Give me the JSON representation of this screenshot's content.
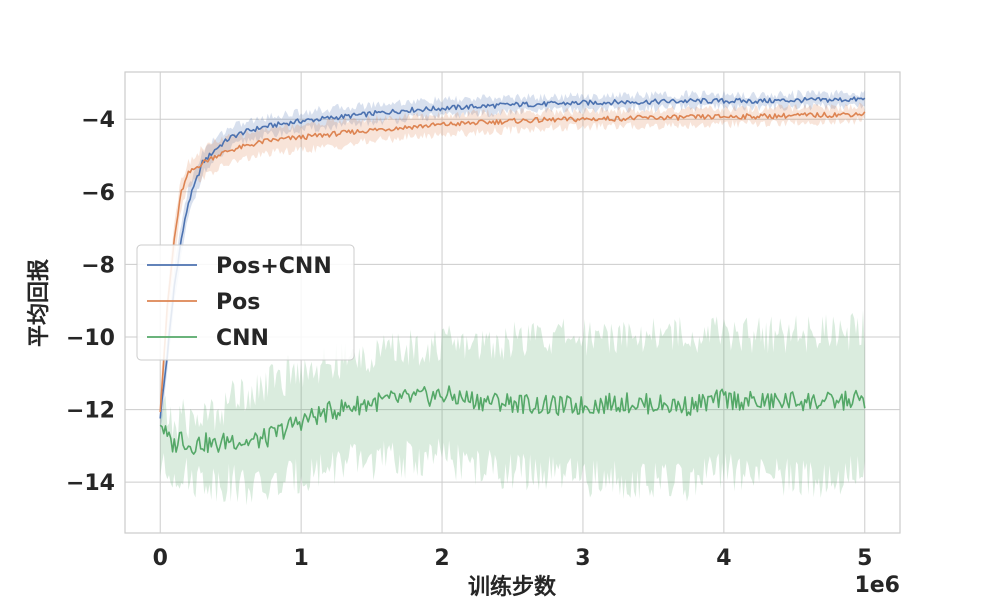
{
  "chart_data": {
    "type": "line",
    "xlabel": "训练步数",
    "ylabel": "平均回报",
    "x_offset_label": "1e6",
    "xlim": [
      -0.25,
      5.25
    ],
    "ylim": [
      -15.4,
      -2.7
    ],
    "xticks": [
      0,
      1,
      2,
      3,
      4,
      5
    ],
    "xtick_labels": [
      "0",
      "1",
      "2",
      "3",
      "4",
      "5"
    ],
    "yticks": [
      -4,
      -6,
      -8,
      -10,
      -12,
      -14
    ],
    "ytick_labels": [
      "−4",
      "−6",
      "−8",
      "−10",
      "−12",
      "−14"
    ],
    "grid": true,
    "legend_position": "center-left",
    "x": [
      0,
      0.05,
      0.1,
      0.15,
      0.2,
      0.3,
      0.4,
      0.5,
      0.6,
      0.75,
      1.0,
      1.25,
      1.5,
      1.75,
      2.0,
      2.25,
      2.5,
      2.75,
      3.0,
      3.25,
      3.5,
      3.75,
      4.0,
      4.25,
      4.5,
      4.75,
      5.0
    ],
    "series": [
      {
        "name": "Pos+CNN",
        "color": "#4c72b0",
        "values": [
          -12.2,
          -10.5,
          -8.6,
          -7.3,
          -6.3,
          -5.2,
          -4.8,
          -4.5,
          -4.35,
          -4.2,
          -4.05,
          -3.95,
          -3.85,
          -3.75,
          -3.7,
          -3.65,
          -3.6,
          -3.58,
          -3.55,
          -3.53,
          -3.52,
          -3.5,
          -3.5,
          -3.5,
          -3.48,
          -3.47,
          -3.45
        ],
        "lower": [
          -12.6,
          -11.0,
          -9.1,
          -7.8,
          -6.7,
          -5.5,
          -5.1,
          -4.8,
          -4.6,
          -4.45,
          -4.3,
          -4.2,
          -4.1,
          -3.98,
          -3.92,
          -3.86,
          -3.8,
          -3.77,
          -3.74,
          -3.71,
          -3.7,
          -3.68,
          -3.68,
          -3.67,
          -3.65,
          -3.64,
          -3.62
        ],
        "upper": [
          -11.8,
          -10.0,
          -8.1,
          -6.8,
          -5.9,
          -4.9,
          -4.5,
          -4.2,
          -4.1,
          -3.95,
          -3.8,
          -3.7,
          -3.6,
          -3.52,
          -3.48,
          -3.44,
          -3.4,
          -3.39,
          -3.36,
          -3.35,
          -3.34,
          -3.32,
          -3.32,
          -3.33,
          -3.31,
          -3.3,
          -3.28
        ]
      },
      {
        "name": "Pos",
        "color": "#dd8452",
        "values": [
          -12.0,
          -9.2,
          -7.3,
          -6.0,
          -5.5,
          -5.2,
          -5.0,
          -4.85,
          -4.75,
          -4.6,
          -4.5,
          -4.4,
          -4.3,
          -4.22,
          -4.15,
          -4.1,
          -4.05,
          -4.02,
          -4.0,
          -3.98,
          -3.96,
          -3.95,
          -3.93,
          -3.92,
          -3.9,
          -3.88,
          -3.85
        ],
        "lower": [
          -12.4,
          -9.7,
          -7.8,
          -6.4,
          -5.8,
          -5.6,
          -5.4,
          -5.2,
          -5.1,
          -4.95,
          -4.85,
          -4.75,
          -4.6,
          -4.5,
          -4.42,
          -4.36,
          -4.3,
          -4.25,
          -4.22,
          -4.2,
          -4.18,
          -4.16,
          -4.14,
          -4.12,
          -4.1,
          -4.08,
          -4.05
        ],
        "upper": [
          -11.6,
          -8.7,
          -6.8,
          -5.6,
          -5.2,
          -4.8,
          -4.6,
          -4.5,
          -4.4,
          -4.25,
          -4.15,
          -4.05,
          -4.0,
          -3.94,
          -3.88,
          -3.84,
          -3.8,
          -3.79,
          -3.78,
          -3.76,
          -3.74,
          -3.74,
          -3.72,
          -3.72,
          -3.7,
          -3.68,
          -3.65
        ]
      },
      {
        "name": "CNN",
        "color": "#55a868",
        "values": [
          -12.3,
          -12.8,
          -13.0,
          -12.7,
          -13.0,
          -12.9,
          -13.0,
          -12.8,
          -12.9,
          -12.8,
          -12.3,
          -12.0,
          -11.8,
          -11.7,
          -11.6,
          -11.75,
          -11.8,
          -11.9,
          -11.9,
          -11.8,
          -11.85,
          -11.9,
          -11.7,
          -11.8,
          -11.75,
          -11.8,
          -11.7
        ],
        "lower": [
          -13.6,
          -13.8,
          -13.7,
          -13.7,
          -13.9,
          -13.9,
          -14.0,
          -14.0,
          -14.1,
          -14.2,
          -13.8,
          -13.5,
          -13.4,
          -13.4,
          -13.3,
          -13.6,
          -13.7,
          -13.8,
          -13.9,
          -13.9,
          -14.0,
          -14.0,
          -13.7,
          -13.8,
          -13.9,
          -13.9,
          -13.7
        ],
        "upper": [
          -11.9,
          -12.2,
          -12.5,
          -12.2,
          -12.3,
          -12.2,
          -12.1,
          -11.7,
          -11.5,
          -11.3,
          -10.9,
          -10.7,
          -10.5,
          -10.3,
          -10.2,
          -10.2,
          -10.1,
          -10.0,
          -10.0,
          -9.9,
          -9.9,
          -9.9,
          -9.9,
          -9.9,
          -9.9,
          -9.9,
          -9.8
        ]
      }
    ]
  }
}
